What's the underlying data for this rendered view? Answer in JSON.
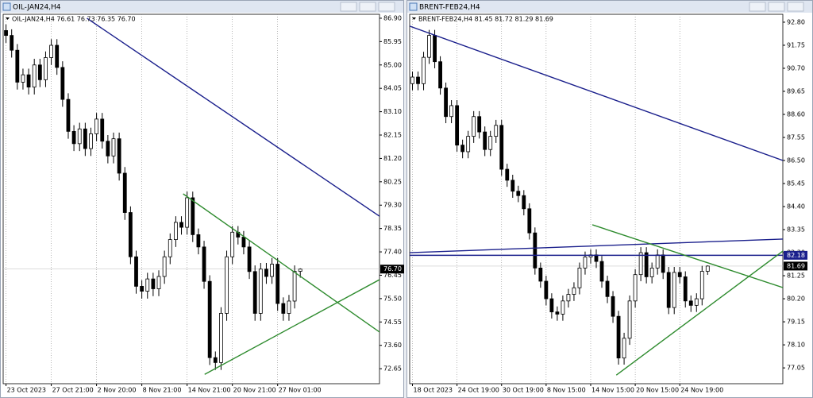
{
  "chart_data": [
    {
      "type": "candlestick",
      "window_title": "OIL-JAN24,H4",
      "info": "OIL-JAN24,H4  76.61 76.73 76.35 76.70",
      "categories": [
        "23 Oct 2023",
        null,
        null,
        null,
        null,
        null,
        null,
        null,
        "27 Oct 21:00",
        null,
        null,
        null,
        null,
        null,
        null,
        null,
        "2 Nov 20:00",
        null,
        null,
        null,
        null,
        null,
        null,
        null,
        "8 Nov 21:00",
        null,
        null,
        null,
        null,
        null,
        null,
        null,
        "14 Nov 21:00",
        null,
        null,
        null,
        null,
        null,
        null,
        null,
        "20 Nov 21:00",
        null,
        null,
        null,
        null,
        null,
        null,
        null,
        "27 Nov 01:00",
        null,
        null,
        null,
        null
      ],
      "open": [
        86.4,
        86.2,
        85.6,
        84.3,
        84.6,
        84.1,
        85.0,
        84.4,
        85.3,
        85.8,
        84.9,
        83.6,
        82.3,
        81.8,
        82.4,
        81.6,
        82.2,
        82.8,
        81.9,
        81.3,
        82.0,
        80.6,
        79.0,
        77.2,
        76.0,
        75.8,
        76.3,
        75.9,
        76.4,
        77.2,
        77.9,
        78.6,
        78.4,
        79.6,
        78.1,
        77.6,
        76.2,
        73.1,
        72.9,
        74.9,
        77.2,
        78.2,
        78.0,
        77.6,
        76.6,
        74.9,
        76.7,
        76.4,
        76.9,
        75.3,
        74.9,
        75.4,
        76.61
      ],
      "high": [
        86.65,
        86.45,
        85.85,
        84.85,
        84.85,
        85.25,
        85.25,
        85.55,
        86.05,
        86.05,
        85.15,
        83.85,
        82.55,
        82.65,
        82.65,
        82.45,
        83.05,
        83.05,
        82.15,
        82.25,
        82.25,
        80.85,
        79.25,
        77.45,
        76.25,
        76.55,
        76.55,
        76.65,
        77.45,
        78.15,
        78.85,
        78.85,
        79.85,
        79.85,
        78.35,
        77.85,
        76.45,
        73.35,
        75.15,
        77.45,
        78.45,
        78.45,
        78.25,
        77.85,
        76.85,
        76.95,
        76.95,
        77.15,
        77.15,
        75.55,
        75.65,
        76.85,
        76.73
      ],
      "low": [
        85.9,
        85.3,
        84.0,
        84.0,
        83.8,
        83.8,
        84.1,
        84.1,
        85.0,
        84.6,
        83.3,
        82.0,
        81.5,
        81.5,
        81.3,
        81.3,
        81.9,
        81.6,
        81.0,
        81.0,
        80.3,
        78.7,
        76.9,
        75.7,
        75.5,
        75.5,
        75.6,
        75.6,
        76.1,
        76.9,
        77.6,
        78.1,
        78.1,
        77.8,
        77.3,
        75.9,
        72.8,
        72.6,
        72.6,
        74.6,
        76.9,
        77.7,
        77.3,
        76.3,
        74.6,
        74.6,
        76.1,
        76.1,
        75.0,
        74.6,
        74.6,
        75.1,
        76.35
      ],
      "close": [
        86.2,
        85.6,
        84.3,
        84.6,
        84.1,
        85.0,
        84.4,
        85.3,
        85.8,
        84.9,
        83.6,
        82.3,
        81.8,
        82.4,
        81.6,
        82.2,
        82.8,
        81.9,
        81.3,
        82.0,
        80.6,
        79.0,
        77.2,
        76.0,
        75.8,
        76.3,
        75.9,
        76.4,
        77.2,
        77.9,
        78.6,
        78.4,
        79.6,
        78.1,
        77.6,
        76.2,
        73.1,
        72.9,
        74.9,
        77.2,
        78.2,
        78.0,
        77.6,
        76.6,
        74.9,
        76.7,
        76.4,
        76.9,
        75.3,
        74.9,
        75.4,
        76.61,
        76.7
      ],
      "xlim": [
        -0.5,
        66
      ],
      "ylim": [
        72.04,
        87.06
      ],
      "yticks": [
        {
          "value": 86.9,
          "label": "86.90"
        },
        85.95,
        {
          "value": 85,
          "label": "85.00"
        },
        84.05,
        {
          "value": 83.1,
          "label": "83.10"
        },
        82.15,
        {
          "value": 81.2,
          "label": "81.20"
        },
        80.25,
        {
          "value": 79.3,
          "label": "79.30"
        },
        78.35,
        {
          "value": 77.4,
          "label": "77.40"
        },
        76.45,
        {
          "value": 75.5,
          "label": "75.50"
        },
        74.55,
        {
          "value": 73.6,
          "label": "73.60"
        },
        72.65
      ],
      "grid": true,
      "up_color": "#ffffff",
      "down_color": "#000000",
      "trendlines": [
        {
          "color": "#1a1f8c",
          "x": [
            14.3,
            66
          ],
          "y": [
            86.9,
            78.85
          ]
        },
        {
          "color": "#2e8b2e",
          "x": [
            31.3,
            66
          ],
          "y": [
            79.76,
            74.14
          ]
        },
        {
          "color": "#2e8b2e",
          "x": [
            35.1,
            66
          ],
          "y": [
            72.42,
            76.27
          ]
        }
      ],
      "price_labels": [
        {
          "value": 76.7,
          "label": "76.70",
          "color": "#000000"
        }
      ]
    },
    {
      "type": "candlestick",
      "window_title": "BRENT-FEB24,H4",
      "info": "BRENT-FEB24,H4  81.45 81.72 81.29 81.69",
      "categories": [
        "18 Oct 2023",
        null,
        null,
        null,
        null,
        null,
        null,
        null,
        "24 Oct 19:00",
        null,
        null,
        null,
        null,
        null,
        null,
        null,
        "30 Oct 19:00",
        null,
        null,
        null,
        null,
        null,
        null,
        null,
        "8 Nov 15:00",
        null,
        null,
        null,
        null,
        null,
        null,
        null,
        "14 Nov 15:00",
        null,
        null,
        null,
        null,
        null,
        null,
        null,
        "20 Nov 15:00",
        null,
        null,
        null,
        null,
        null,
        null,
        null,
        "24 Nov 19:00",
        null,
        null,
        null,
        null,
        null
      ],
      "open": [
        90.0,
        90.3,
        90.0,
        91.2,
        92.2,
        91.0,
        89.8,
        88.5,
        89.0,
        87.2,
        86.9,
        87.6,
        88.5,
        87.8,
        87.0,
        87.6,
        88.1,
        86.1,
        85.6,
        85.1,
        84.9,
        84.3,
        83.2,
        81.6,
        81.0,
        80.2,
        79.6,
        79.5,
        80.1,
        80.4,
        80.7,
        81.6,
        82.1,
        82.2,
        81.9,
        81.0,
        80.3,
        79.4,
        77.5,
        78.4,
        80.1,
        81.3,
        82.3,
        81.2,
        81.6,
        82.2,
        81.4,
        79.8,
        81.4,
        81.2,
        80.1,
        79.9,
        80.2,
        81.45
      ],
      "high": [
        90.55,
        90.55,
        91.45,
        92.45,
        92.45,
        91.25,
        90.05,
        89.25,
        89.25,
        87.45,
        87.85,
        88.75,
        88.75,
        88.05,
        87.85,
        88.35,
        88.35,
        86.35,
        85.85,
        85.35,
        85.15,
        84.55,
        83.45,
        81.85,
        81.25,
        80.45,
        79.85,
        80.35,
        80.65,
        80.95,
        81.85,
        82.35,
        82.45,
        82.45,
        82.15,
        81.25,
        80.55,
        79.65,
        78.65,
        80.35,
        81.55,
        82.55,
        82.55,
        81.85,
        82.45,
        82.45,
        81.65,
        81.65,
        81.65,
        81.45,
        80.35,
        80.45,
        81.7,
        81.72
      ],
      "low": [
        89.7,
        89.7,
        89.7,
        90.9,
        90.7,
        89.5,
        88.2,
        88.2,
        86.9,
        86.6,
        86.6,
        87.3,
        87.5,
        86.7,
        86.7,
        87.3,
        85.8,
        85.3,
        84.8,
        84.6,
        84.0,
        82.9,
        81.3,
        80.7,
        79.9,
        79.3,
        79.2,
        79.2,
        79.8,
        80.1,
        80.4,
        81.3,
        81.8,
        81.6,
        80.7,
        80.0,
        79.1,
        77.2,
        77.2,
        78.1,
        79.8,
        81.0,
        80.9,
        80.9,
        81.3,
        81.1,
        79.5,
        79.5,
        80.9,
        79.8,
        79.6,
        79.6,
        79.9,
        81.29
      ],
      "close": [
        90.3,
        90.0,
        91.2,
        92.2,
        91.0,
        89.8,
        88.5,
        89.0,
        87.2,
        86.9,
        87.6,
        88.5,
        87.8,
        87.0,
        87.6,
        88.1,
        86.1,
        85.6,
        85.1,
        84.9,
        84.3,
        83.2,
        81.6,
        81.0,
        80.2,
        79.6,
        79.5,
        80.1,
        80.4,
        80.7,
        81.6,
        82.1,
        82.2,
        81.9,
        81.0,
        80.3,
        79.4,
        77.5,
        78.4,
        80.1,
        81.3,
        82.3,
        81.2,
        81.6,
        82.2,
        81.4,
        79.8,
        81.4,
        81.2,
        80.1,
        79.9,
        80.2,
        81.45,
        81.69
      ],
      "xlim": [
        -0.5,
        66.5
      ],
      "ylim": [
        76.33,
        93.16
      ],
      "yticks": [
        {
          "value": 92.8,
          "label": "92.80"
        },
        91.75,
        {
          "value": 90.7,
          "label": "90.70"
        },
        89.65,
        {
          "value": 88.6,
          "label": "88.60"
        },
        87.55,
        {
          "value": 86.5,
          "label": "86.50"
        },
        85.45,
        {
          "value": 84.4,
          "label": "84.40"
        },
        83.35,
        {
          "value": 82.3,
          "label": "82.30"
        },
        81.25,
        {
          "value": 80.2,
          "label": "80.20"
        },
        79.15,
        {
          "value": 78.1,
          "label": "78.10"
        },
        77.05
      ],
      "grid": true,
      "up_color": "#ffffff",
      "down_color": "#000000",
      "trendlines": [
        {
          "color": "#1a1f8c",
          "x": [
            -0.5,
            66.5
          ],
          "y": [
            92.62,
            86.5
          ]
        },
        {
          "color": "#1a1f8c",
          "x": [
            -0.5,
            66.5
          ],
          "y": [
            82.3,
            82.92
          ]
        },
        {
          "color": "#1a1f8c",
          "x": [
            -0.5,
            66.5
          ],
          "y": [
            82.18,
            82.18
          ]
        },
        {
          "color": "#2e8b2e",
          "x": [
            32.3,
            66.5
          ],
          "y": [
            83.57,
            80.71
          ]
        },
        {
          "color": "#2e8b2e",
          "x": [
            36.6,
            66.5
          ],
          "y": [
            76.72,
            82.37
          ]
        }
      ],
      "price_labels": [
        {
          "value": 82.18,
          "label": "82.18",
          "color": "#1a1f8c"
        },
        {
          "value": 81.69,
          "label": "81.69",
          "color": "#000000"
        }
      ]
    }
  ]
}
